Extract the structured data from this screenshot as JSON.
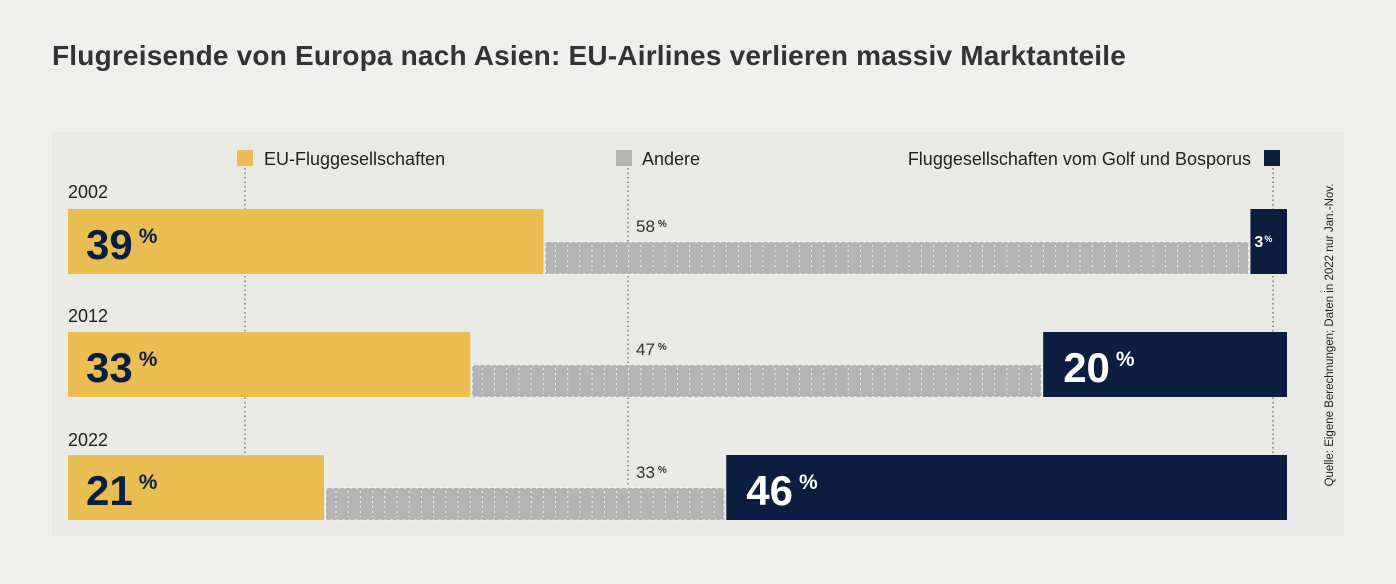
{
  "title": "Flugreisende von Europa nach Asien: EU-Airlines verlieren massiv Marktanteile",
  "source": "Quelle: Eigene Berechnungen; Daten in 2022 nur Jan.-Nov.",
  "colors": {
    "eu": "#e9bd52",
    "other": "#b4b4b4",
    "gulf": "#0c1e3f",
    "background": "#efefed",
    "panel": "#e9e9e6"
  },
  "chart_data": {
    "type": "bar",
    "stacked": true,
    "orientation": "horizontal",
    "unit": "%",
    "categories": [
      "2002",
      "2012",
      "2022"
    ],
    "series": [
      {
        "name": "EU-Fluggesellschaften",
        "values": [
          39,
          33,
          21
        ]
      },
      {
        "name": "Andere",
        "values": [
          58,
          47,
          33
        ]
      },
      {
        "name": "Fluggesellschaften vom Golf und Bosporus",
        "values": [
          3,
          20,
          46
        ]
      }
    ],
    "value_labels": [
      [
        "39",
        "58",
        "3"
      ],
      [
        "33",
        "47",
        "20"
      ],
      [
        "21",
        "33",
        "46"
      ]
    ],
    "xlim": [
      0,
      100
    ],
    "legend": "top",
    "grid": "vertical dotted lines"
  }
}
